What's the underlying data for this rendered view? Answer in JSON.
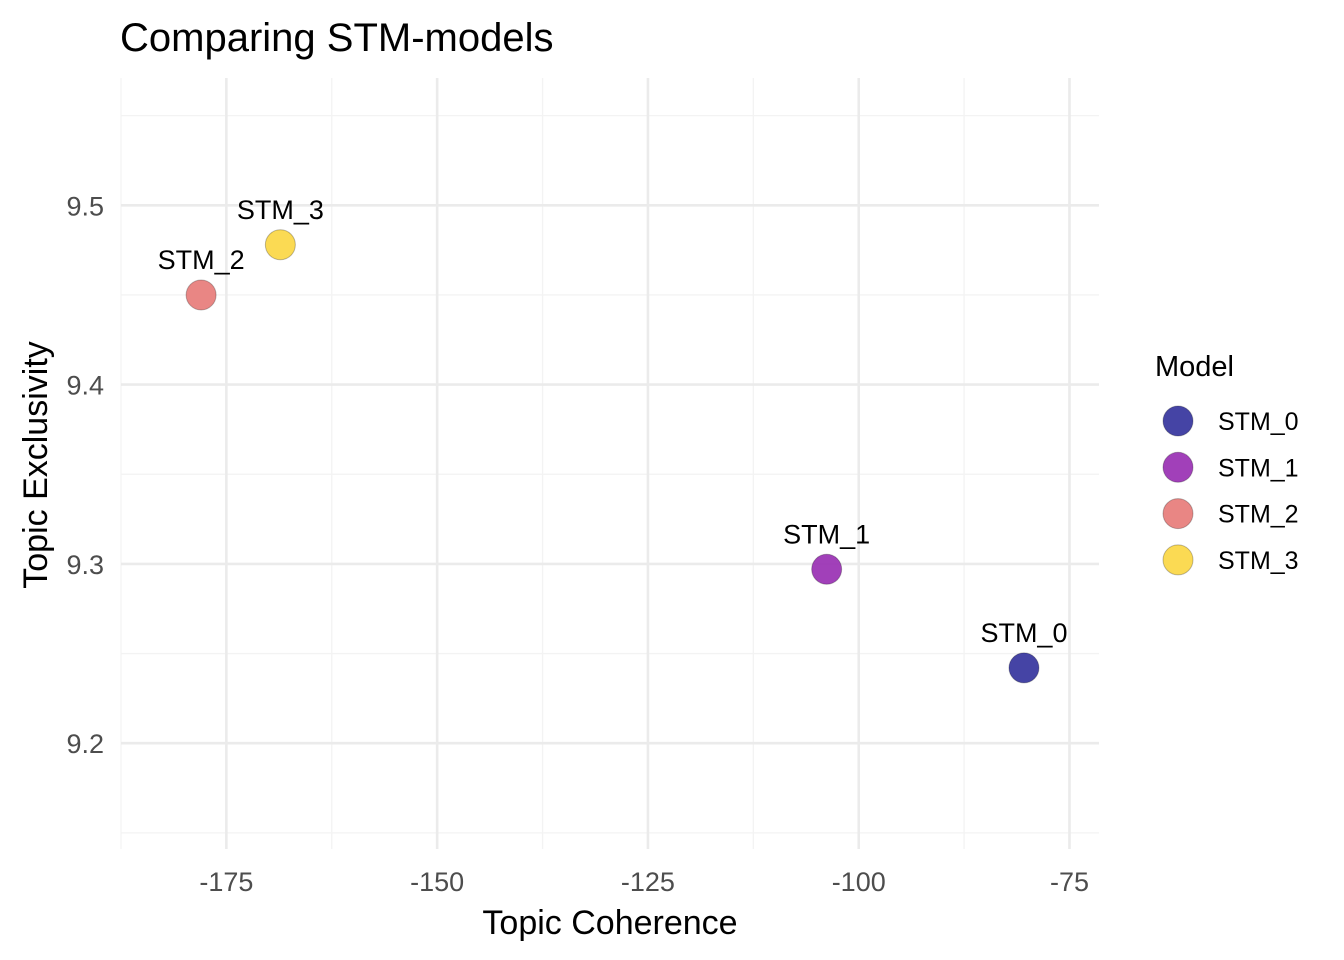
{
  "chart_data": {
    "type": "scatter",
    "title": "Comparing STM-models",
    "xlabel": "Topic Coherence",
    "ylabel": "Topic Exclusivity",
    "xlim": [
      -187.5,
      -71.5
    ],
    "ylim": [
      9.141,
      9.571
    ],
    "x_ticks": [
      -175,
      -150,
      -125,
      -100,
      -75
    ],
    "x_tick_labels": [
      "-175",
      "-150",
      "-125",
      "-100",
      "-75"
    ],
    "y_ticks": [
      9.2,
      9.3,
      9.4,
      9.5
    ],
    "y_tick_labels": [
      "9.2",
      "9.3",
      "9.4",
      "9.5"
    ],
    "grid": true,
    "legend_title": "Model",
    "legend_position": "right",
    "points": [
      {
        "label": "STM_0",
        "x": -80.4,
        "y": 9.242,
        "color": "#3b3aa0"
      },
      {
        "label": "STM_1",
        "x": -103.8,
        "y": 9.297,
        "color": "#9c36b5"
      },
      {
        "label": "STM_2",
        "x": -178.0,
        "y": 9.45,
        "color": "#e8807d"
      },
      {
        "label": "STM_3",
        "x": -168.6,
        "y": 9.478,
        "color": "#fbd84a"
      }
    ]
  }
}
